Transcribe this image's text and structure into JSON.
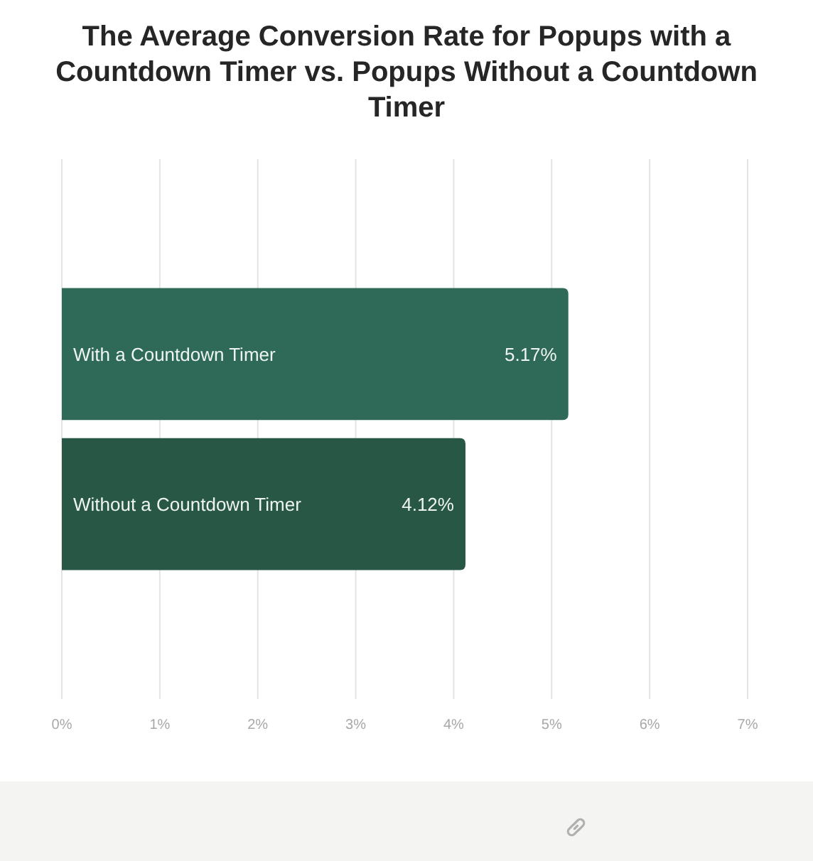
{
  "chart_data": {
    "type": "bar",
    "title": "The Average Conversion Rate for Popups with a Countdown Timer vs. Popups Without a Countdown Timer",
    "orientation": "horizontal",
    "categories": [
      "With a Countdown Timer",
      "Without a Countdown Timer"
    ],
    "values": [
      5.17,
      4.12
    ],
    "colors": [
      "#2f6957",
      "#285845"
    ],
    "value_labels": [
      "5.17%",
      "4.12%"
    ],
    "xlim": [
      0,
      7
    ],
    "xticks": [
      {
        "value": 0,
        "label": "0%"
      },
      {
        "value": 1,
        "label": "1%"
      },
      {
        "value": 2,
        "label": "2%"
      },
      {
        "value": 3,
        "label": "3%"
      },
      {
        "value": 4,
        "label": "4%"
      },
      {
        "value": 5,
        "label": "5%"
      },
      {
        "value": 6,
        "label": "6%"
      },
      {
        "value": 7,
        "label": "7%"
      }
    ],
    "grid": "x"
  }
}
